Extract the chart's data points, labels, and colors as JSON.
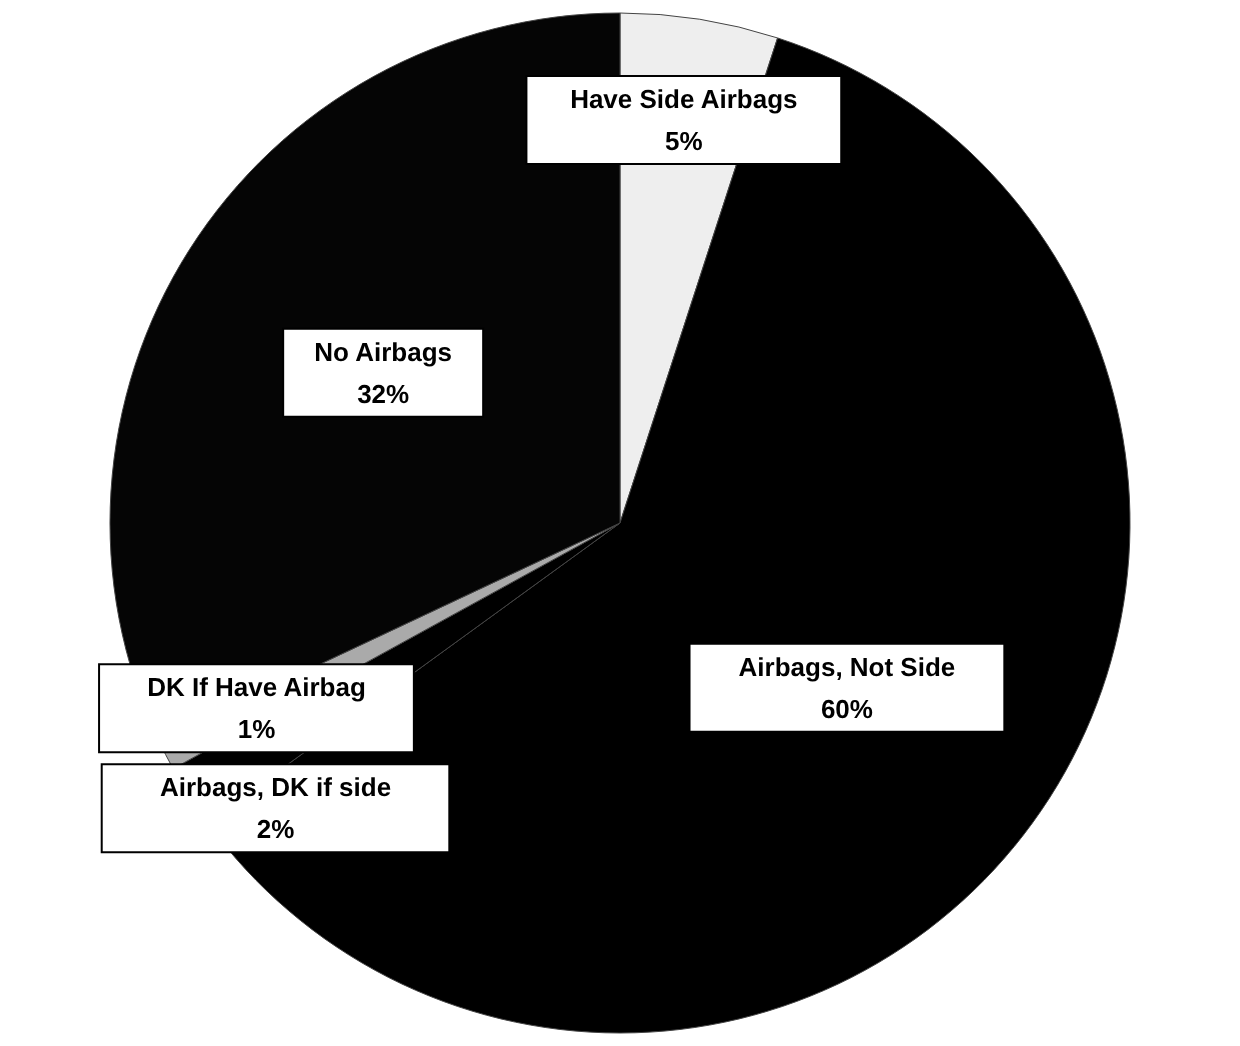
{
  "chart_data": {
    "type": "pie",
    "categories": [
      "Have Side Airbags",
      "Airbags, Not Side",
      "Airbags, DK if side",
      "DK If Have Airbag",
      "No Airbags"
    ],
    "values": [
      5,
      60,
      2,
      1,
      32
    ],
    "colors": [
      "#eeeeee",
      "#000000",
      "#000000",
      "#aaaaaa",
      "#050505"
    ],
    "value_labels": [
      "5%",
      "60%",
      "2%",
      "1%",
      "32%"
    ]
  }
}
